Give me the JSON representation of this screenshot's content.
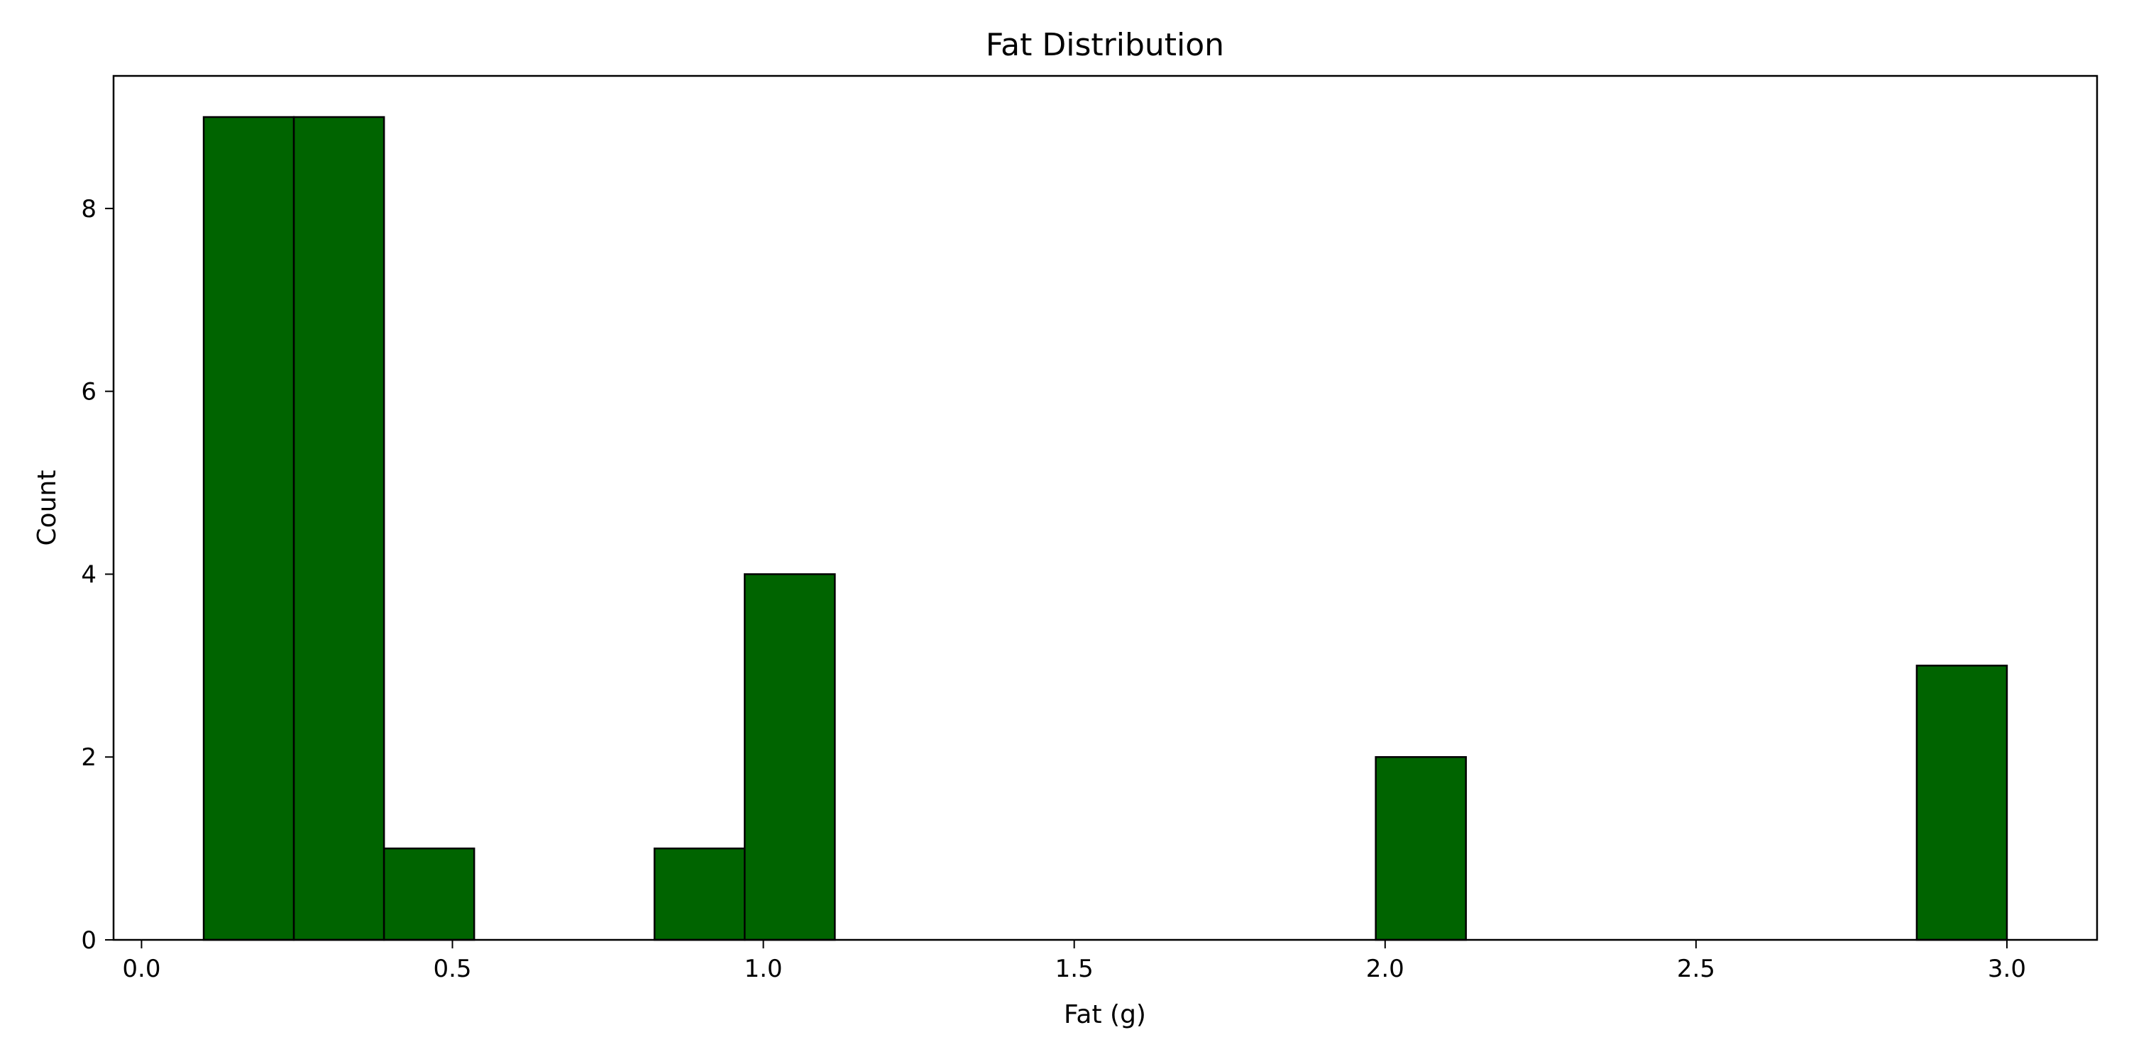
{
  "chart_data": {
    "type": "bar",
    "title": "Fat Distribution",
    "xlabel": "Fat (g)",
    "ylabel": "Count",
    "bar_color": "#006400",
    "edge_color": "#000000",
    "bins": [
      {
        "x0": 0.1,
        "x1": 0.245,
        "count": 9
      },
      {
        "x0": 0.245,
        "x1": 0.39,
        "count": 9
      },
      {
        "x0": 0.39,
        "x1": 0.535,
        "count": 1
      },
      {
        "x0": 0.825,
        "x1": 0.97,
        "count": 1
      },
      {
        "x0": 0.97,
        "x1": 1.115,
        "count": 4
      },
      {
        "x0": 1.985,
        "x1": 2.13,
        "count": 2
      },
      {
        "x0": 2.855,
        "x1": 3.0,
        "count": 3
      }
    ],
    "xlim": [
      -0.045,
      3.145
    ],
    "ylim": [
      0,
      9.45
    ],
    "xticks": [
      {
        "value": 0.0,
        "label": "0.0"
      },
      {
        "value": 0.5,
        "label": "0.5"
      },
      {
        "value": 1.0,
        "label": "1.0"
      },
      {
        "value": 1.5,
        "label": "1.5"
      },
      {
        "value": 2.0,
        "label": "2.0"
      },
      {
        "value": 2.5,
        "label": "2.5"
      },
      {
        "value": 3.0,
        "label": "3.0"
      }
    ],
    "yticks": [
      {
        "value": 0,
        "label": "0"
      },
      {
        "value": 2,
        "label": "2"
      },
      {
        "value": 4,
        "label": "4"
      },
      {
        "value": 6,
        "label": "6"
      },
      {
        "value": 8,
        "label": "8"
      }
    ],
    "grid": false,
    "legend": "none"
  }
}
